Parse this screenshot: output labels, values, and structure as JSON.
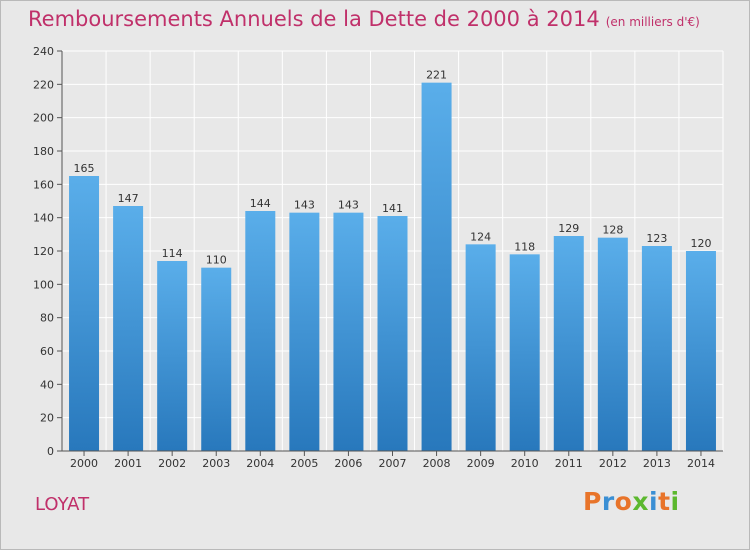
{
  "header": {
    "title": "Remboursements Annuels de la Dette de 2000 à 2014",
    "subtitle": "(en milliers d'€)"
  },
  "footer": {
    "commune": "LOYAT",
    "logo_text": "Proxiti"
  },
  "colors": {
    "title": "#c0306a",
    "bar_light": "#5aaeea",
    "bar_dark": "#2878bc",
    "background": "#e8e8e8",
    "grid": "#ffffff",
    "logo_letters": [
      "#e8742a",
      "#3a8fd4",
      "#e8742a",
      "#5cb82e",
      "#3a8fd4",
      "#e8742a",
      "#5cb82e"
    ]
  },
  "chart_data": {
    "type": "bar",
    "categories": [
      "2000",
      "2001",
      "2002",
      "2003",
      "2004",
      "2005",
      "2006",
      "2007",
      "2008",
      "2009",
      "2010",
      "2011",
      "2012",
      "2013",
      "2014"
    ],
    "values": [
      165,
      147,
      114,
      110,
      144,
      143,
      143,
      141,
      221,
      124,
      118,
      129,
      128,
      123,
      120
    ],
    "ylim": [
      0,
      240
    ],
    "yticks": [
      0,
      20,
      40,
      60,
      80,
      100,
      120,
      140,
      160,
      180,
      200,
      220,
      240
    ],
    "grid": true,
    "data_labels": true
  }
}
